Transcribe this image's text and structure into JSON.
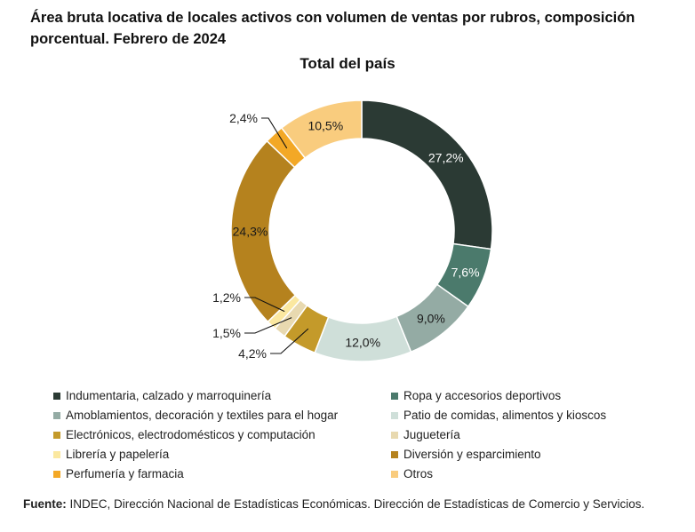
{
  "title": "Área bruta locativa de locales activos con volumen de ventas por rubros, composición porcentual. Febrero de 2024",
  "chart_data": {
    "type": "pie",
    "subtitle": "Total del país",
    "slices": [
      {
        "name": "Indumentaria, calzado y marroquinería",
        "value": 27.2,
        "label": "27,2%",
        "color": "#2b3a34"
      },
      {
        "name": "Ropa y accesorios deportivos",
        "value": 7.6,
        "label": "7,6%",
        "color": "#4b7a6c"
      },
      {
        "name": "Amoblamientos, decoración y textiles para el hogar",
        "value": 9.0,
        "label": "9,0%",
        "color": "#94aba4"
      },
      {
        "name": "Patio de comidas, alimentos y kioscos",
        "value": 12.0,
        "label": "12,0%",
        "color": "#cfdfd9"
      },
      {
        "name": "Electrónicos, electrodomésticos y computación",
        "value": 4.2,
        "label": "4,2%",
        "color": "#c49a2a"
      },
      {
        "name": "Juguetería",
        "value": 1.5,
        "label": "1,5%",
        "color": "#e8d9b0"
      },
      {
        "name": "Librería y papelería",
        "value": 1.2,
        "label": "1,2%",
        "color": "#fbe8a0"
      },
      {
        "name": "Diversión y esparcimiento",
        "value": 24.3,
        "label": "24,3%",
        "color": "#b5821e"
      },
      {
        "name": "Perfumería y farmacia",
        "value": 2.4,
        "label": "2,4%",
        "color": "#f3a826"
      },
      {
        "name": "Otros",
        "value": 10.5,
        "label": "10,5%",
        "color": "#f9cc7e"
      }
    ]
  },
  "source": {
    "label": "Fuente:",
    "text": " INDEC, Dirección Nacional de Estadísticas Económicas. Dirección de Estadísticas de Comercio y Servicios."
  }
}
